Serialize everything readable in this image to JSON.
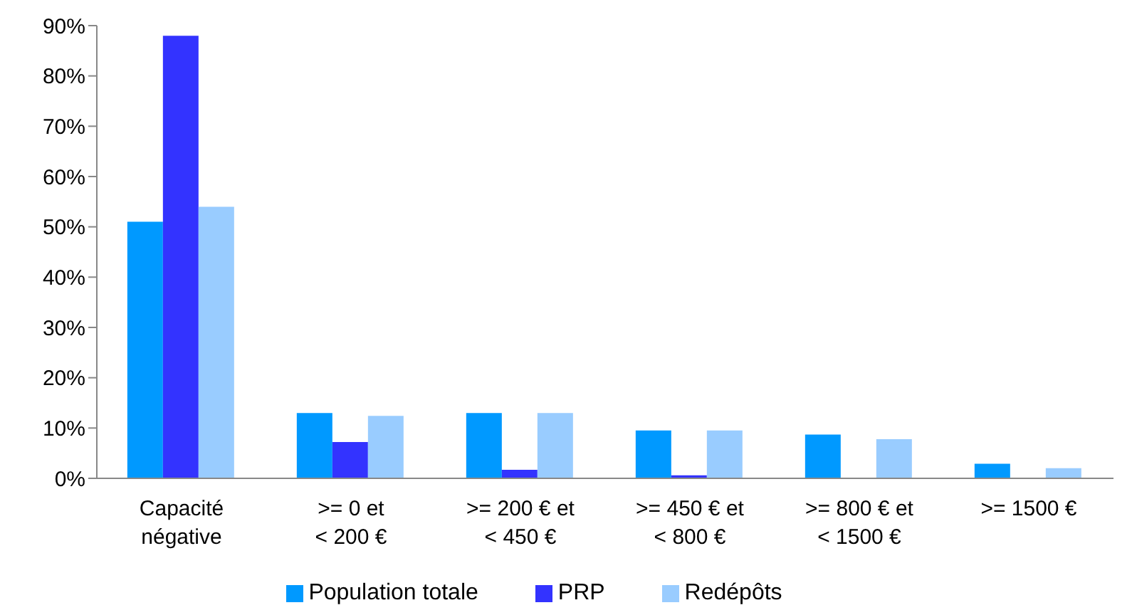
{
  "chart_data": {
    "type": "bar",
    "categories": [
      "Capacité négative",
      ">= 0 et < 200 €",
      ">= 200 € et < 450 €",
      ">= 450 € et < 800 €",
      ">= 800 € et < 1500 €",
      ">= 1500 €"
    ],
    "series": [
      {
        "name": "Population totale",
        "color": "#0099ff",
        "values": [
          51,
          13,
          13,
          9.5,
          8.7,
          2.9
        ]
      },
      {
        "name": "PRP",
        "color": "#3333ff",
        "values": [
          88,
          7.2,
          1.7,
          0.6,
          null,
          0
        ]
      },
      {
        "name": "Redépôts",
        "color": "#99ccff",
        "values": [
          54,
          12.4,
          13,
          9.5,
          7.8,
          2
        ]
      }
    ],
    "ylim": [
      0,
      90
    ],
    "yticks": [
      {
        "value": 0,
        "label": "0%"
      },
      {
        "value": 10,
        "label": "10%"
      },
      {
        "value": 20,
        "label": "20%"
      },
      {
        "value": 30,
        "label": "30%"
      },
      {
        "value": 40,
        "label": "40%"
      },
      {
        "value": 50,
        "label": "50%"
      },
      {
        "value": 60,
        "label": "60%"
      },
      {
        "value": 70,
        "label": "70%"
      },
      {
        "value": 80,
        "label": "80%"
      },
      {
        "value": 90,
        "label": "90%"
      }
    ],
    "grid": false,
    "legend": "bottom"
  }
}
